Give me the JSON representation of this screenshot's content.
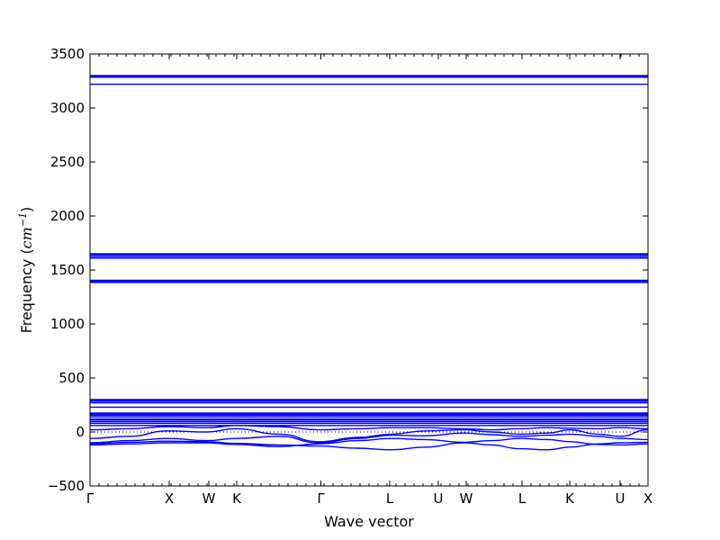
{
  "chart_data": {
    "type": "line",
    "title": "",
    "xlabel": "Wave vector",
    "ylabel_prefix": "Frequency (",
    "ylabel_unit": "cm",
    "ylabel_exp": "−1",
    "ylabel_suffix": ")",
    "ylim": [
      -500,
      3500
    ],
    "yticks": [
      -500,
      0,
      500,
      1000,
      1500,
      2000,
      2500,
      3000,
      3500
    ],
    "xlim": [
      0,
      1
    ],
    "grid": false,
    "line_color": "#0000ff",
    "kpoints": [
      {
        "label": "Γ",
        "x": 0.0
      },
      {
        "label": "X",
        "x": 0.1419
      },
      {
        "label": "W",
        "x": 0.2129
      },
      {
        "label": "K",
        "x": 0.2629
      },
      {
        "label": "Γ",
        "x": 0.4137
      },
      {
        "label": "L",
        "x": 0.5371
      },
      {
        "label": "U",
        "x": 0.6242
      },
      {
        "label": "W",
        "x": 0.6742
      },
      {
        "label": "L",
        "x": 0.7742
      },
      {
        "label": "K",
        "x": 0.8597
      },
      {
        "label": "U",
        "x": 0.95
      },
      {
        "label": "X",
        "x": 1.0
      }
    ],
    "series_flat": [
      3300,
      3295,
      3290,
      3285,
      3220,
      1650,
      1640,
      1625,
      1610,
      1405,
      1395,
      1385,
      300,
      292,
      285,
      270,
      230,
      175,
      165,
      155,
      140,
      120,
      110,
      95,
      80,
      60
    ],
    "series_dispersive": [
      {
        "x": [
          0,
          0.07,
          0.14,
          0.21,
          0.26,
          0.34,
          0.41,
          0.48,
          0.54,
          0.6,
          0.67,
          0.72,
          0.77,
          0.82,
          0.86,
          0.91,
          0.95,
          1.0
        ],
        "y": [
          -110,
          -95,
          -85,
          -90,
          -105,
          -120,
          -130,
          -150,
          -165,
          -140,
          -100,
          -120,
          -155,
          -165,
          -140,
          -110,
          -100,
          -95
        ]
      },
      {
        "x": [
          0,
          0.07,
          0.14,
          0.21,
          0.26,
          0.34,
          0.41,
          0.48,
          0.54,
          0.6,
          0.67,
          0.72,
          0.77,
          0.82,
          0.86,
          0.91,
          0.95,
          1.0
        ],
        "y": [
          -120,
          -110,
          -100,
          -100,
          -115,
          -135,
          -110,
          -80,
          -60,
          -70,
          -95,
          -80,
          -60,
          -70,
          -90,
          -115,
          -120,
          -110
        ]
      },
      {
        "x": [
          0,
          0.07,
          0.14,
          0.21,
          0.26,
          0.34,
          0.41,
          0.48,
          0.54,
          0.6,
          0.67,
          0.72,
          0.77,
          0.82,
          0.86,
          0.91,
          0.95,
          1.0
        ],
        "y": [
          -100,
          -80,
          -60,
          -80,
          -60,
          -40,
          -100,
          -60,
          -30,
          -35,
          -10,
          -25,
          -40,
          -30,
          -20,
          -40,
          -60,
          -70
        ]
      },
      {
        "x": [
          0,
          0.07,
          0.14,
          0.21,
          0.26,
          0.34,
          0.41,
          0.48,
          0.54,
          0.6,
          0.67,
          0.72,
          0.77,
          0.82,
          0.86,
          0.91,
          0.95,
          1.0
        ],
        "y": [
          -60,
          -40,
          10,
          0,
          30,
          -20,
          -90,
          -50,
          -20,
          10,
          20,
          0,
          -20,
          -10,
          20,
          -20,
          -40,
          20
        ]
      },
      {
        "x": [
          0,
          0.07,
          0.14,
          0.21,
          0.26,
          0.34,
          0.41,
          0.48,
          0.54,
          0.6,
          0.67,
          0.72,
          0.77,
          0.82,
          0.86,
          0.91,
          0.95,
          1.0
        ],
        "y": [
          20,
          30,
          50,
          40,
          60,
          50,
          20,
          30,
          40,
          40,
          30,
          20,
          30,
          40,
          35,
          30,
          40,
          30
        ]
      }
    ]
  }
}
